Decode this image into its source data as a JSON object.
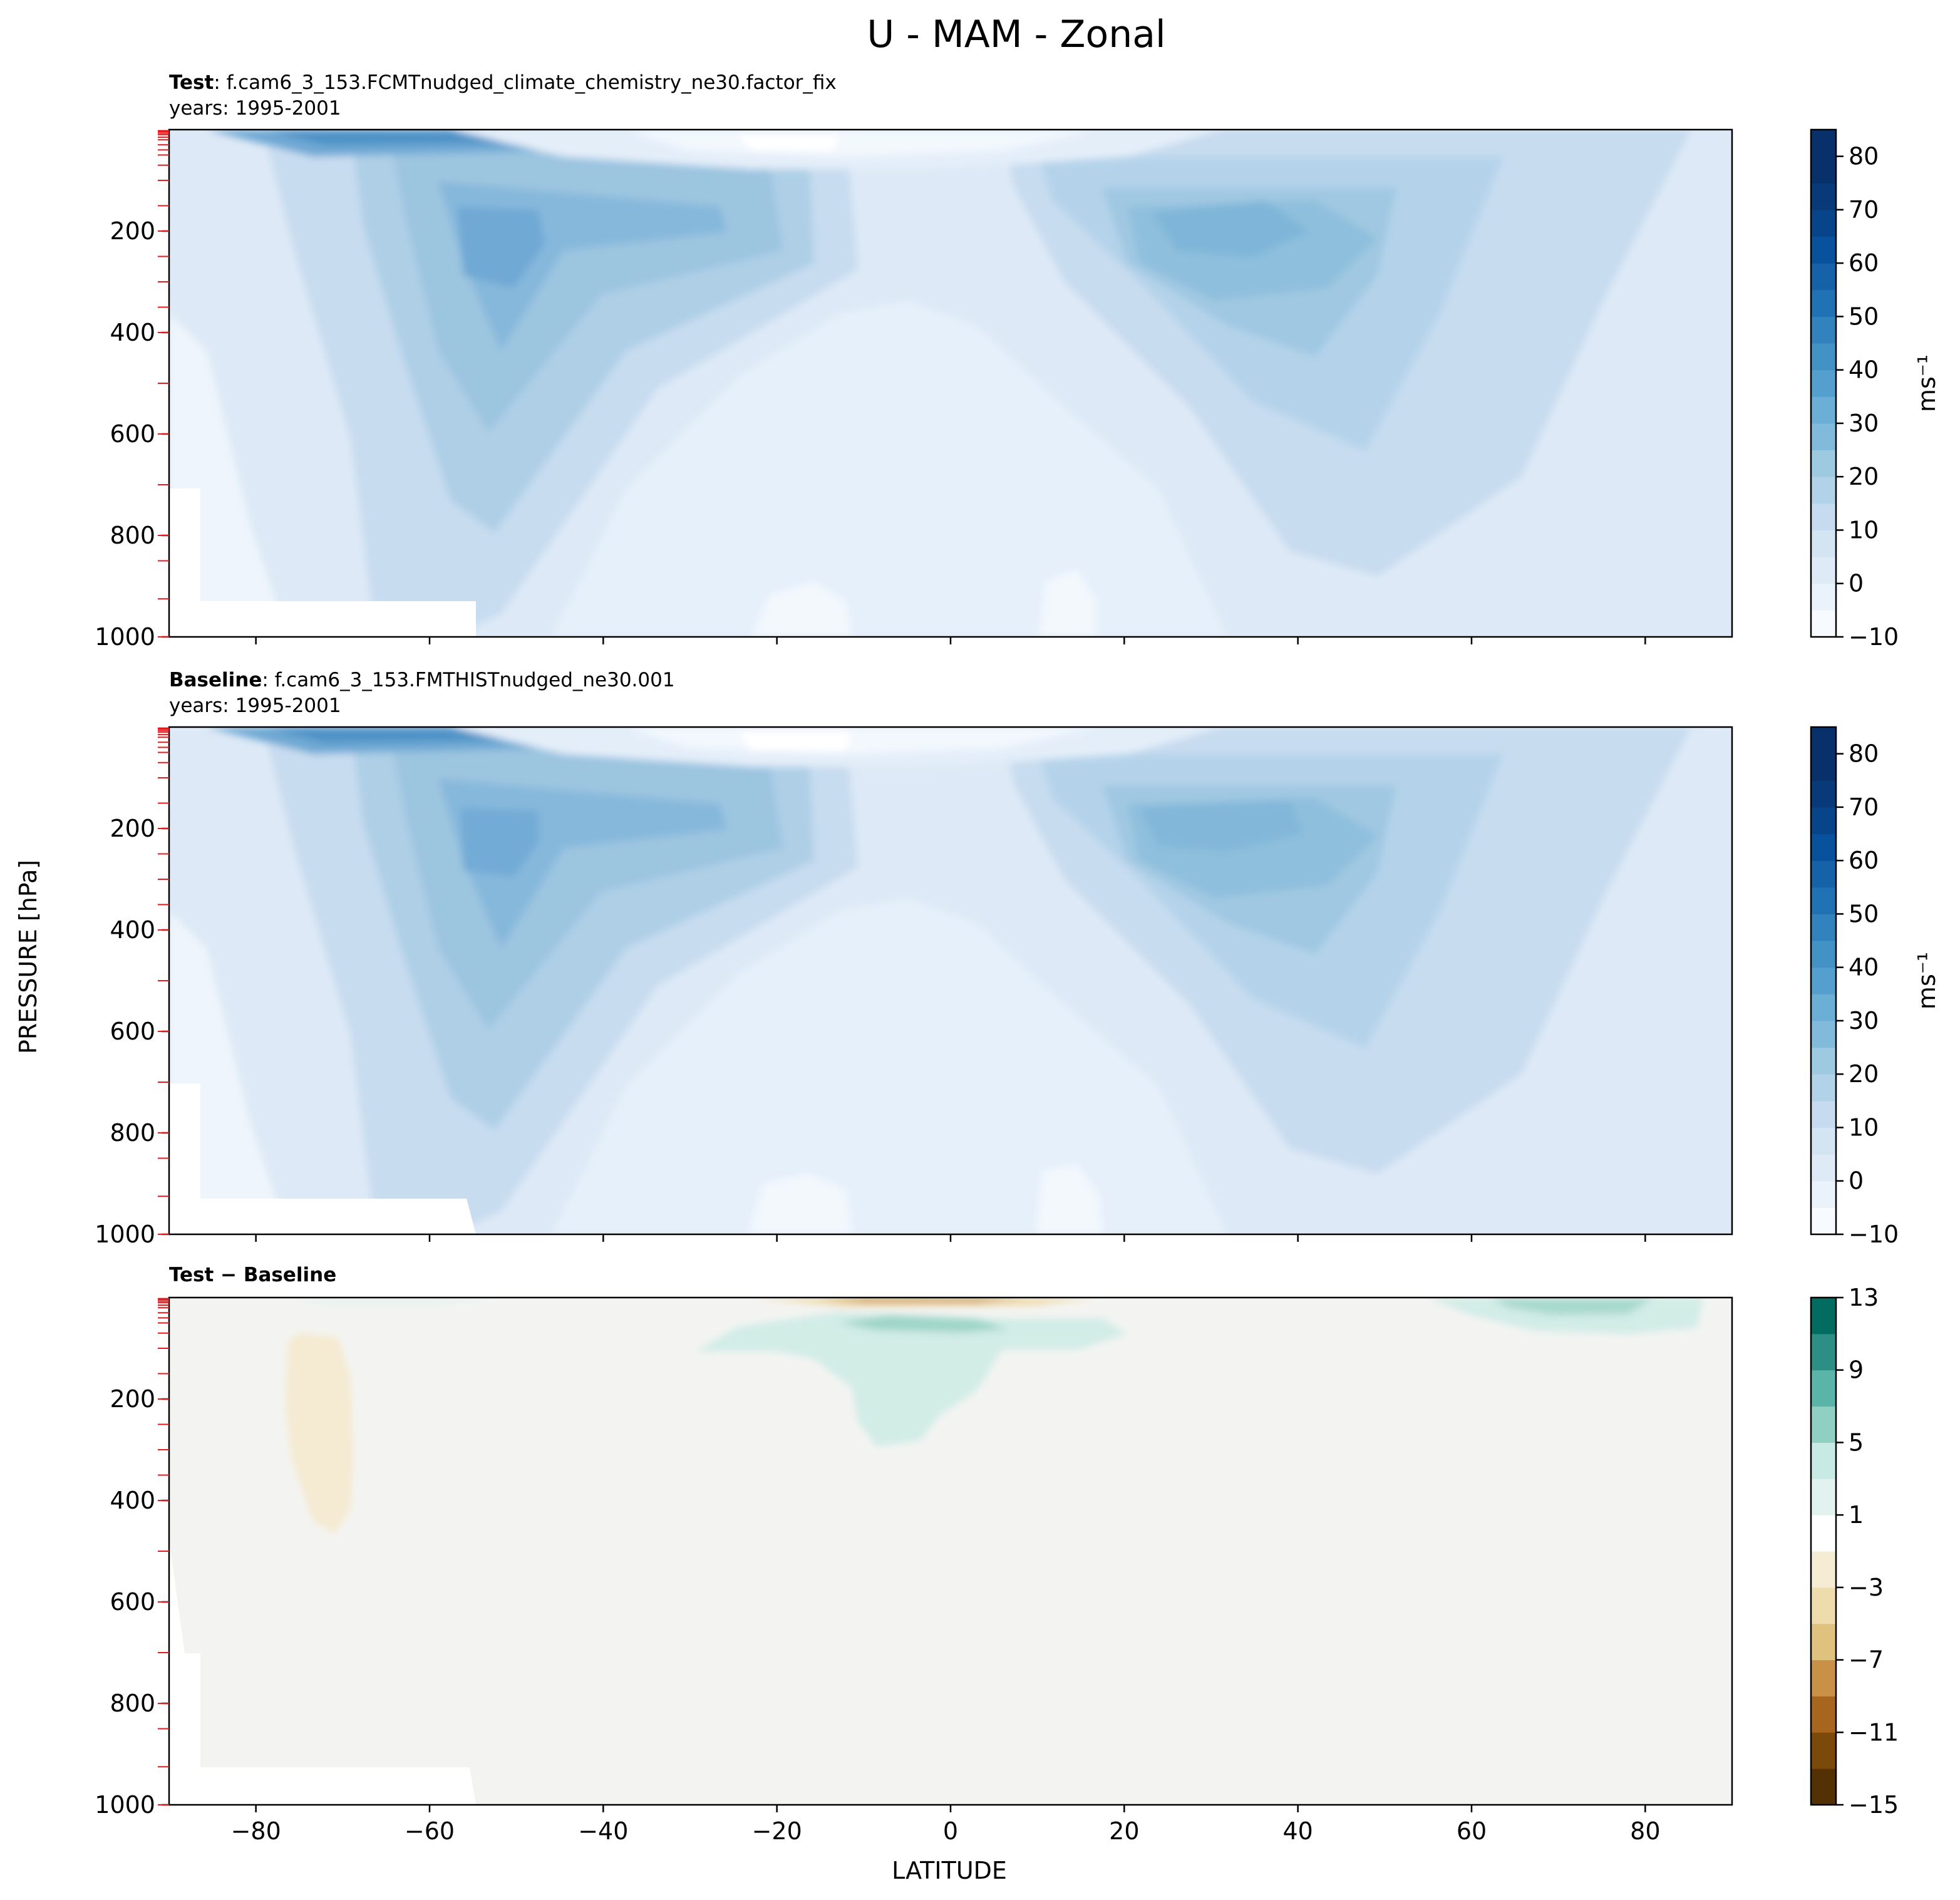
{
  "figure_title": "U - MAM - Zonal",
  "ylabel": "PRESSURE [hPa]",
  "xlabel": "LATITUDE",
  "chart_data": [
    {
      "type": "heatmap",
      "panel": "Test",
      "title_bold": "Test",
      "title_rest": ": f.cam6_3_153.FCMTnudged_climate_chemistry_ne30.factor_fix",
      "subtitle": "years: 1995-2001",
      "xlim": [
        -90,
        90
      ],
      "ylim": [
        1000,
        0
      ],
      "xticks": [
        -80,
        -60,
        -40,
        -20,
        0,
        20,
        40,
        60,
        80
      ],
      "yticks": [
        200,
        400,
        600,
        800,
        1000
      ],
      "colorbar": {
        "label": "ms⁻¹",
        "levels": [
          -10,
          -5,
          0,
          5,
          10,
          15,
          20,
          25,
          30,
          35,
          40,
          45,
          50,
          55,
          60,
          65,
          70,
          75,
          80,
          85
        ],
        "ticks": [
          -10,
          0,
          10,
          20,
          30,
          40,
          50,
          60,
          70,
          80
        ],
        "colormap": "Blues"
      },
      "features": [
        {
          "kind": "jet",
          "lat": -52,
          "pressure": 230,
          "value": 37
        },
        {
          "kind": "jet",
          "lat": 32,
          "pressure": 200,
          "value": 31
        },
        {
          "kind": "stratospheric-jet",
          "lat": -62,
          "pressure": 10,
          "value": 55
        },
        {
          "kind": "minimum",
          "lat": -10,
          "pressure": 20,
          "value": -2
        },
        {
          "kind": "minimum",
          "lat": -68,
          "pressure": 950,
          "value": -5
        }
      ]
    },
    {
      "type": "heatmap",
      "panel": "Baseline",
      "title_bold": "Baseline",
      "title_rest": ": f.cam6_3_153.FMTHISTnudged_ne30.001",
      "subtitle": "years: 1995-2001",
      "xlim": [
        -90,
        90
      ],
      "ylim": [
        1000,
        0
      ],
      "xticks": [
        -80,
        -60,
        -40,
        -20,
        0,
        20,
        40,
        60,
        80
      ],
      "yticks": [
        200,
        400,
        600,
        800,
        1000
      ],
      "colorbar": {
        "label": "ms⁻¹",
        "levels": [
          -10,
          -5,
          0,
          5,
          10,
          15,
          20,
          25,
          30,
          35,
          40,
          45,
          50,
          55,
          60,
          65,
          70,
          75,
          80,
          85
        ],
        "ticks": [
          -10,
          0,
          10,
          20,
          30,
          40,
          50,
          60,
          70,
          80
        ],
        "colormap": "Blues"
      },
      "features": [
        {
          "kind": "jet",
          "lat": -52,
          "pressure": 230,
          "value": 36
        },
        {
          "kind": "jet",
          "lat": 30,
          "pressure": 200,
          "value": 31
        },
        {
          "kind": "stratospheric-jet",
          "lat": -62,
          "pressure": 10,
          "value": 55
        },
        {
          "kind": "minimum",
          "lat": -10,
          "pressure": 20,
          "value": -2
        },
        {
          "kind": "minimum",
          "lat": -68,
          "pressure": 950,
          "value": -5
        }
      ]
    },
    {
      "type": "heatmap",
      "panel": "Difference",
      "title_bold": "Test − Baseline",
      "title_rest": "",
      "subtitle": "",
      "xlim": [
        -90,
        90
      ],
      "ylim": [
        1000,
        0
      ],
      "xticks": [
        -80,
        -60,
        -40,
        -20,
        0,
        20,
        40,
        60,
        80
      ],
      "yticks": [
        200,
        400,
        600,
        800,
        1000
      ],
      "colorbar": {
        "label": "",
        "levels": [
          -15,
          -13,
          -11,
          -9,
          -7,
          -5,
          -3,
          -1,
          1,
          3,
          5,
          7,
          9,
          11,
          13
        ],
        "ticks": [
          -15,
          -11,
          -7,
          -3,
          1,
          5,
          9,
          13
        ],
        "colormap": "BrBG"
      },
      "features": [
        {
          "kind": "negative",
          "lat": -70,
          "pressure": 200,
          "value": -1.5
        },
        {
          "kind": "positive",
          "lat": 0,
          "pressure": 150,
          "value": 2
        },
        {
          "kind": "positive",
          "lat": -5,
          "pressure": 50,
          "value": 4
        },
        {
          "kind": "positive",
          "lat": 72,
          "pressure": 20,
          "value": 3
        },
        {
          "kind": "negative",
          "lat": 0,
          "pressure": 2,
          "value": -4
        }
      ]
    }
  ],
  "model_levels_hPa": [
    2,
    4,
    7,
    10,
    15,
    20,
    30,
    40,
    50,
    70,
    100,
    150,
    200,
    250,
    300,
    350,
    400,
    500,
    600,
    700,
    800,
    850,
    925,
    1000
  ]
}
